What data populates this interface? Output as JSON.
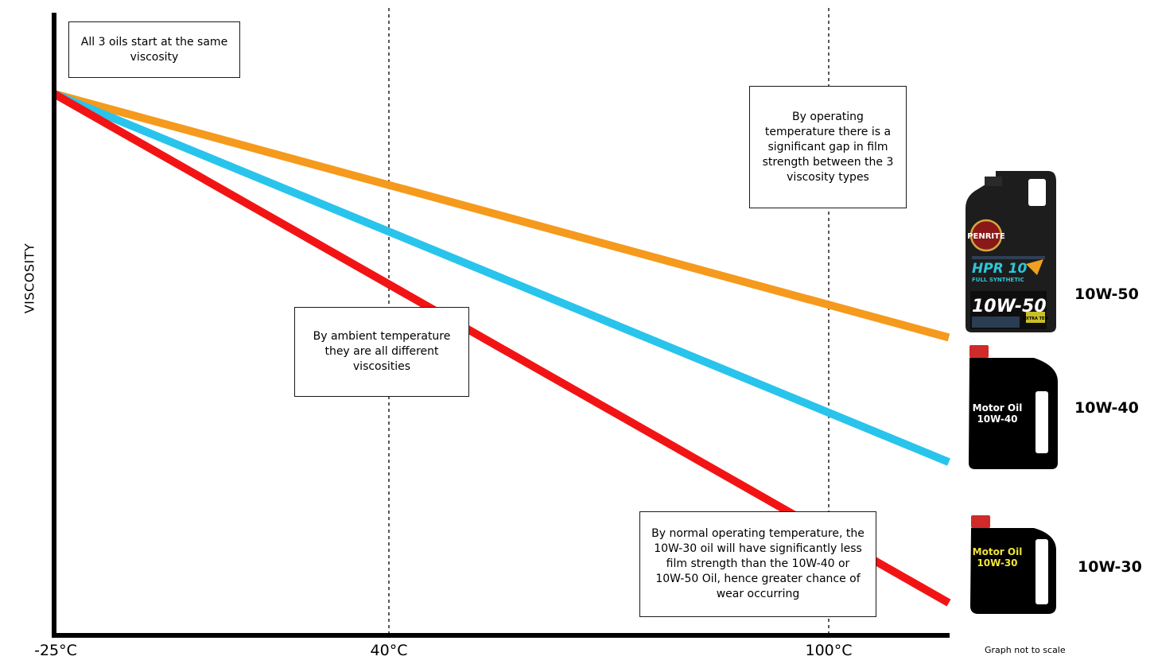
{
  "chart_data": {
    "type": "line",
    "ylabel": "VISCOSITY",
    "x_ticks": [
      "-25°C",
      "40°C",
      "100°C"
    ],
    "gridlines_at": [
      "40°C",
      "100°C"
    ],
    "series": [
      {
        "name": "10W-50",
        "color": "#f59a1c",
        "start": 100,
        "end": 55
      },
      {
        "name": "10W-40",
        "color": "#29c4ec",
        "start": 100,
        "end": 32
      },
      {
        "name": "10W-30",
        "color": "#f21414",
        "start": 100,
        "end": 6
      }
    ],
    "annotations": {
      "start": "All 3 oils start at the same viscosity",
      "operating": "By operating temperature there is a significant gap in film strength between the 3 viscosity types",
      "ambient": "By ambient temperature they are all different viscosities",
      "normal": "By normal operating temperature, the 10W-30 oil will have significantly less film strength than the 10W-40 or 10W-50 Oil, hence greater chance of wear occurring"
    },
    "footnote": "Graph not to scale",
    "y_scale_shown": false,
    "legend": "right"
  },
  "bottles": {
    "premium": {
      "brand": "PENRITE",
      "product": "HPR 10",
      "sub": "FULL SYNTHETIC",
      "grade": "10W-50",
      "extra": "EXTRA TEN"
    },
    "generic_40": {
      "line1": "Motor Oil",
      "line2": "10W-40"
    },
    "generic_30": {
      "line1": "Motor Oil",
      "line2": "10W-30"
    }
  }
}
